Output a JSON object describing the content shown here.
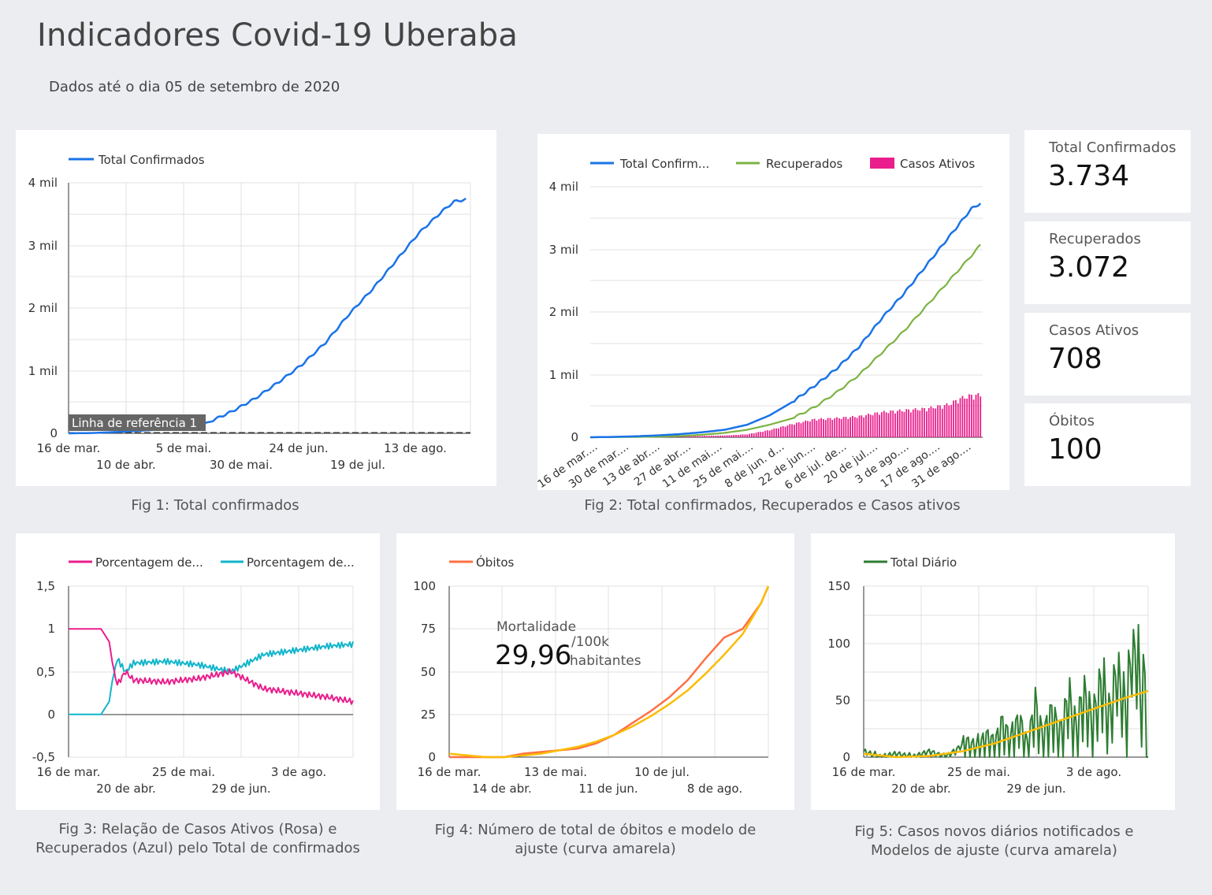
{
  "header": {
    "title": "Indicadores Covid-19 Uberaba",
    "subtitle": "Dados até o dia 05 de setembro de 2020"
  },
  "kpis": [
    {
      "label": "Total Confirmados",
      "value": "3.734"
    },
    {
      "label": "Recuperados",
      "value": "3.072"
    },
    {
      "label": "Casos Ativos",
      "value": "708"
    },
    {
      "label": "Óbitos",
      "value": "100"
    }
  ],
  "captions": {
    "fig1": "Fig 1: Total confirmados",
    "fig2": "Fig 2:  Total confirmados, Recuperados e Casos ativos",
    "fig3_line1": "Fig 3:  Relação de Casos Ativos (Rosa) e",
    "fig3_line2": "Recuperados (Azul)  pelo Total de confirmados",
    "fig4_line1": "Fig 4:  Número de total de óbitos e modelo de",
    "fig4_line2": "ajuste (curva amarela)",
    "fig5_line1": "Fig 5:  Casos novos diários notificados e",
    "fig5_line2": "Modelos de ajuste (curva amarela)"
  },
  "mortality": {
    "label": "Mortalidade",
    "value": "29,96",
    "unit_line1": "/100k",
    "unit_line2": "habitantes"
  },
  "colors": {
    "blue": "#1a73e8",
    "green": "#7cb342",
    "pink": "#e91e8c",
    "cyan": "#12b5cb",
    "orange": "#ff7043",
    "yellow": "#fbbc04",
    "darkgreen": "#2e7d32"
  },
  "chart_data": [
    {
      "id": "fig1",
      "type": "line",
      "series": [
        {
          "name": "Total Confirmados",
          "x": [
            0,
            10,
            20,
            30,
            40,
            50,
            60,
            70,
            80,
            90,
            100,
            110,
            120,
            130,
            140,
            150,
            160,
            165,
            170
          ],
          "values": [
            0,
            5,
            20,
            40,
            60,
            90,
            180,
            350,
            560,
            820,
            1100,
            1450,
            1900,
            2300,
            2750,
            3200,
            3550,
            3700,
            3734
          ]
        }
      ],
      "reference_line": {
        "label": "Linha de referência 1",
        "value": 0
      },
      "x_ticks_row1": [
        "16 de mar.",
        "5 de mai.",
        "24 de jun.",
        "13 de ago."
      ],
      "x_ticks_row2": [
        "10 de abr.",
        "30 de mai.",
        "19 de jul."
      ],
      "y_ticks": [
        "0",
        "1 mil",
        "2 mil",
        "3 mil",
        "4 mil"
      ],
      "ylim": [
        0,
        4000
      ]
    },
    {
      "id": "fig2",
      "type": "line",
      "series": [
        {
          "name": "Total Confirm...",
          "x": [
            0,
            10,
            20,
            30,
            40,
            50,
            60,
            70,
            80,
            90,
            100,
            110,
            120,
            130,
            140,
            150,
            160,
            170,
            174
          ],
          "values": [
            0,
            5,
            15,
            30,
            50,
            80,
            120,
            200,
            350,
            560,
            820,
            1100,
            1450,
            1900,
            2300,
            2750,
            3200,
            3650,
            3734
          ]
        },
        {
          "name": "Recuperados",
          "x": [
            0,
            10,
            20,
            30,
            40,
            50,
            60,
            70,
            80,
            90,
            100,
            110,
            120,
            130,
            140,
            150,
            160,
            170,
            174
          ],
          "values": [
            0,
            2,
            5,
            10,
            20,
            40,
            70,
            120,
            200,
            300,
            480,
            720,
            1000,
            1350,
            1700,
            2100,
            2500,
            2900,
            3072
          ]
        },
        {
          "name": "Casos Ativos",
          "type": "bar",
          "x": [
            0,
            20,
            40,
            60,
            70,
            80,
            90,
            100,
            110,
            120,
            130,
            140,
            150,
            160,
            165,
            170,
            174
          ],
          "values": [
            0,
            5,
            15,
            30,
            50,
            120,
            220,
            300,
            320,
            350,
            420,
            450,
            480,
            550,
            650,
            700,
            708
          ]
        }
      ],
      "x_ticks": [
        "16 de mar....",
        "30 de mar....",
        "13 de abr....",
        "27 de abr....",
        "11 de mai....",
        "25 de mai....",
        "8 de jun. d...",
        "22 de jun....",
        "6 de jul. de...",
        "20 de jul....",
        "3 de ago....",
        "17 de ago....",
        "31 de ago...."
      ],
      "y_ticks": [
        "0",
        "1 mil",
        "2 mil",
        "3 mil",
        "4 mil"
      ],
      "ylim": [
        0,
        4000
      ]
    },
    {
      "id": "fig3",
      "type": "line",
      "series": [
        {
          "name": "Porcentagem de...",
          "x": [
            0,
            20,
            25,
            27,
            30,
            35,
            40,
            60,
            80,
            100,
            120,
            140,
            160,
            175
          ],
          "values": [
            1,
            1,
            0.85,
            0.6,
            0.35,
            0.5,
            0.4,
            0.38,
            0.42,
            0.5,
            0.3,
            0.25,
            0.2,
            0.15
          ]
        },
        {
          "name": "Porcentagem de...",
          "x": [
            0,
            20,
            25,
            27,
            30,
            35,
            40,
            60,
            80,
            100,
            120,
            140,
            160,
            175
          ],
          "values": [
            0,
            0,
            0.15,
            0.4,
            0.65,
            0.5,
            0.6,
            0.62,
            0.58,
            0.5,
            0.7,
            0.75,
            0.8,
            0.82
          ]
        }
      ],
      "x_ticks_row1": [
        "16 de mar.",
        "25 de mai.",
        "3 de ago."
      ],
      "x_ticks_row2": [
        "20 de abr.",
        "29 de jun."
      ],
      "y_ticks": [
        "-0,5",
        "0",
        "0,5",
        "1",
        "1,5"
      ],
      "ylim": [
        -0.5,
        1.5
      ]
    },
    {
      "id": "fig4",
      "type": "line",
      "series": [
        {
          "name": "Óbitos",
          "x": [
            0,
            20,
            30,
            40,
            50,
            60,
            70,
            80,
            90,
            100,
            110,
            120,
            130,
            140,
            150,
            160,
            170,
            174
          ],
          "values": [
            0,
            0,
            0,
            2,
            3,
            4,
            5,
            8,
            13,
            20,
            27,
            35,
            45,
            58,
            70,
            75,
            90,
            100
          ]
        },
        {
          "name": "Ajuste",
          "x": [
            0,
            10,
            20,
            30,
            40,
            50,
            60,
            70,
            80,
            90,
            100,
            110,
            120,
            130,
            140,
            150,
            160,
            170,
            174
          ],
          "values": [
            2,
            1,
            0,
            0,
            1,
            2,
            4,
            6,
            9,
            13,
            18,
            24,
            31,
            39,
            49,
            60,
            72,
            90,
            100
          ]
        }
      ],
      "x_ticks_row1": [
        "16 de mar.",
        "13 de mai.",
        "10 de jul."
      ],
      "x_ticks_row2": [
        "14 de abr.",
        "11 de jun.",
        "8 de ago."
      ],
      "y_ticks": [
        "0",
        "25",
        "50",
        "75",
        "100"
      ],
      "ylim": [
        0,
        100
      ]
    },
    {
      "id": "fig5",
      "type": "line",
      "series": [
        {
          "name": "Total Diário",
          "x": [
            0,
            10,
            20,
            30,
            40,
            50,
            60,
            70,
            75,
            80,
            85,
            90,
            95,
            100,
            105,
            110,
            115,
            120,
            125,
            130,
            135,
            140,
            145,
            150,
            155,
            160,
            165,
            170,
            172,
            174
          ],
          "values": [
            5,
            0,
            3,
            0,
            5,
            0,
            10,
            5,
            15,
            8,
            25,
            10,
            30,
            5,
            40,
            10,
            35,
            15,
            45,
            20,
            50,
            25,
            60,
            30,
            70,
            40,
            100,
            45,
            70,
            0
          ]
        },
        {
          "name": "Ajuste",
          "x": [
            0,
            20,
            40,
            60,
            80,
            100,
            120,
            140,
            160,
            174
          ],
          "values": [
            3,
            0,
            1,
            5,
            12,
            22,
            32,
            42,
            52,
            58
          ]
        }
      ],
      "x_ticks_row1": [
        "16 de mar.",
        "25 de mai.",
        "3 de ago."
      ],
      "x_ticks_row2": [
        "20 de abr.",
        "29 de jun."
      ],
      "y_ticks": [
        "0",
        "50",
        "100",
        "150"
      ],
      "ylim": [
        0,
        150
      ]
    }
  ]
}
